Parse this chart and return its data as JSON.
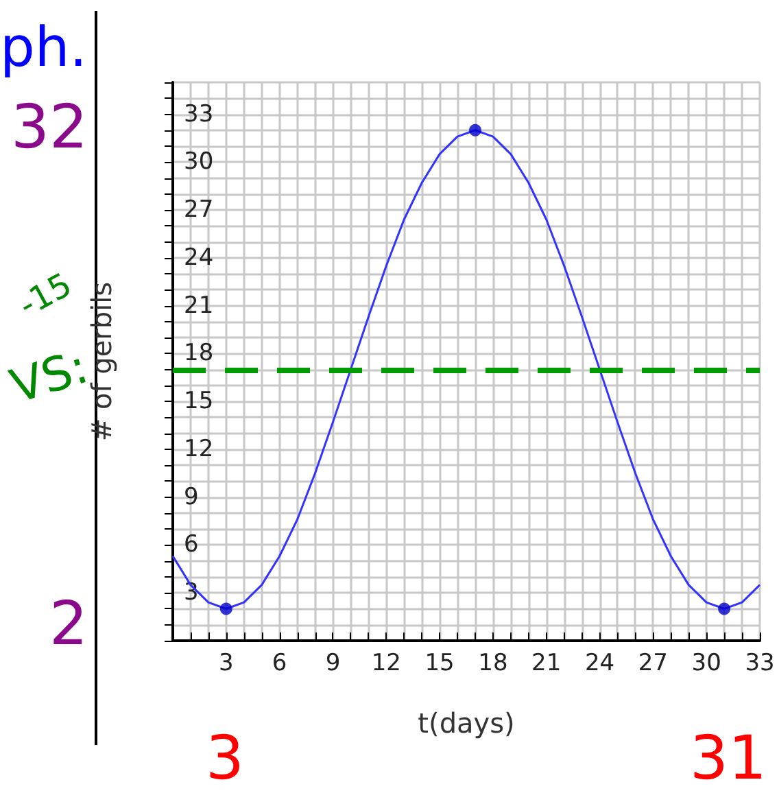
{
  "chart_data": {
    "type": "line",
    "xlabel": "t(days)",
    "ylabel": "# of gerbils",
    "xlim": [
      0,
      33
    ],
    "ylim": [
      0,
      35
    ],
    "xticks": [
      {
        "value": 0,
        "label": null
      },
      {
        "value": 1,
        "label": null
      },
      {
        "value": 2,
        "label": null
      },
      3,
      {
        "value": 4,
        "label": null
      },
      {
        "value": 5,
        "label": null
      },
      6,
      {
        "value": 7,
        "label": null
      },
      {
        "value": 8,
        "label": null
      },
      9,
      {
        "value": 10,
        "label": null
      },
      {
        "value": 11,
        "label": null
      },
      12,
      {
        "value": 13,
        "label": null
      },
      {
        "value": 14,
        "label": null
      },
      15,
      {
        "value": 16,
        "label": null
      },
      {
        "value": 17,
        "label": null
      },
      18,
      {
        "value": 19,
        "label": null
      },
      {
        "value": 20,
        "label": null
      },
      21,
      {
        "value": 22,
        "label": null
      },
      {
        "value": 23,
        "label": null
      },
      24,
      {
        "value": 25,
        "label": null
      },
      {
        "value": 26,
        "label": null
      },
      27,
      {
        "value": 28,
        "label": null
      },
      {
        "value": 29,
        "label": null
      },
      30,
      {
        "value": 31,
        "label": null
      },
      {
        "value": 32,
        "label": null
      },
      33
    ],
    "yticks": [
      {
        "value": 0,
        "label": null
      },
      {
        "value": 1,
        "label": null
      },
      {
        "value": 2,
        "label": null
      },
      3,
      {
        "value": 4,
        "label": null
      },
      {
        "value": 5,
        "label": null
      },
      6,
      {
        "value": 7,
        "label": null
      },
      {
        "value": 8,
        "label": null
      },
      9,
      {
        "value": 10,
        "label": null
      },
      {
        "value": 11,
        "label": null
      },
      12,
      {
        "value": 13,
        "label": null
      },
      {
        "value": 14,
        "label": null
      },
      15,
      {
        "value": 16,
        "label": null
      },
      {
        "value": 17,
        "label": null
      },
      18,
      {
        "value": 19,
        "label": null
      },
      {
        "value": 20,
        "label": null
      },
      21,
      {
        "value": 22,
        "label": null
      },
      {
        "value": 23,
        "label": null
      },
      24,
      {
        "value": 25,
        "label": null
      },
      {
        "value": 26,
        "label": null
      },
      27,
      {
        "value": 28,
        "label": null
      },
      {
        "value": 29,
        "label": null
      },
      30,
      {
        "value": 31,
        "label": null
      },
      {
        "value": 32,
        "label": null
      },
      33,
      {
        "value": 34,
        "label": null
      },
      {
        "value": 35,
        "label": null
      }
    ],
    "grid": true,
    "series": [
      {
        "color": "#3333ff",
        "marker": "none",
        "x": [
          0,
          1,
          2,
          3,
          4,
          5,
          6,
          7,
          8,
          9,
          10,
          11,
          12,
          13,
          14,
          15,
          16,
          17,
          18,
          19,
          20,
          21,
          22,
          23,
          24,
          25,
          26,
          27,
          28,
          29,
          30,
          31,
          32,
          33
        ],
        "values": [
          5.3,
          3.5,
          2.4,
          2,
          2.4,
          3.5,
          5.3,
          7.6,
          10.5,
          13.7,
          17,
          20.3,
          23.5,
          26.4,
          28.7,
          30.5,
          31.6,
          32,
          31.6,
          30.5,
          28.7,
          26.4,
          23.5,
          20.3,
          17,
          13.7,
          10.5,
          7.6,
          5.3,
          3.5,
          2.4,
          2,
          2.4,
          3.5
        ]
      },
      {
        "type": "scatter",
        "color": "#0000cc",
        "marker": "circle",
        "x": [
          3,
          17,
          31
        ],
        "values": [
          2,
          32,
          2
        ]
      }
    ],
    "ref_lines": [
      {
        "axis": "y",
        "value": 17,
        "color": "#009900",
        "line_style": "dashed"
      }
    ],
    "annotations": [
      "32",
      "2",
      "3",
      "31",
      "-15",
      "VS:",
      "ph."
    ]
  }
}
